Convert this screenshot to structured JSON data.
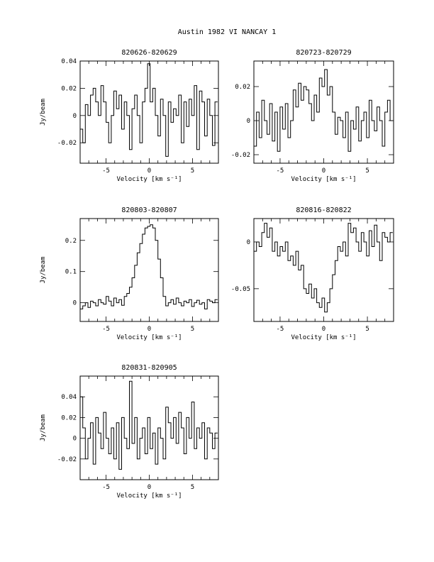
{
  "page": {
    "title": "Austin 1982 VI   NANCAY      1"
  },
  "chart_data": [
    {
      "type": "line",
      "title": "820626-820629",
      "xlabel": "Velocity [km s⁻¹]",
      "ylabel": "Jy/beam",
      "xlim": [
        -8,
        8
      ],
      "ylim": [
        -0.035,
        0.04
      ],
      "xticks": [
        -5,
        0,
        5
      ],
      "xtick_labels": [
        "-5",
        "0",
        "5"
      ],
      "yticks": [
        -0.02,
        0,
        0.02,
        0.04
      ],
      "ytick_labels": [
        "-0.02",
        "0",
        "0.02",
        "0.04"
      ],
      "x": [
        -8,
        -7.7,
        -7.4,
        -7.1,
        -6.8,
        -6.5,
        -6.2,
        -5.9,
        -5.6,
        -5.3,
        -5.0,
        -4.7,
        -4.4,
        -4.1,
        -3.8,
        -3.5,
        -3.2,
        -2.9,
        -2.6,
        -2.3,
        -2.0,
        -1.7,
        -1.4,
        -1.1,
        -0.8,
        -0.5,
        -0.2,
        0.1,
        0.4,
        0.7,
        1.0,
        1.3,
        1.6,
        1.9,
        2.2,
        2.5,
        2.8,
        3.1,
        3.4,
        3.7,
        4.0,
        4.3,
        4.6,
        4.9,
        5.2,
        5.5,
        5.8,
        6.1,
        6.4,
        6.7,
        7.0,
        7.3,
        7.6
      ],
      "y": [
        -0.01,
        -0.02,
        0.008,
        0.0,
        0.015,
        0.02,
        0.01,
        0.0,
        0.022,
        0.01,
        -0.005,
        -0.02,
        0.0,
        0.018,
        0.005,
        0.015,
        -0.01,
        0.01,
        0.0,
        -0.025,
        0.005,
        0.015,
        0.0,
        -0.02,
        0.01,
        0.02,
        0.038,
        0.01,
        0.02,
        0.0,
        -0.015,
        0.012,
        0.0,
        -0.03,
        0.01,
        -0.005,
        0.005,
        0.0,
        0.015,
        -0.02,
        0.01,
        -0.008,
        0.012,
        0.0,
        0.022,
        -0.025,
        0.018,
        0.01,
        -0.015,
        0.012,
        0.0,
        -0.022,
        0.01
      ]
    },
    {
      "type": "line",
      "title": "820723-820729",
      "xlabel": "Velocity [km s⁻¹]",
      "ylabel": "",
      "xlim": [
        -8,
        8
      ],
      "ylim": [
        -0.025,
        0.035
      ],
      "xticks": [
        -5,
        0,
        5
      ],
      "xtick_labels": [
        "-5",
        "0",
        "5"
      ],
      "yticks": [
        -0.02,
        0,
        0.02
      ],
      "ytick_labels": [
        "-0.02",
        "0",
        "0.02"
      ],
      "x": [
        -8,
        -7.7,
        -7.4,
        -7.1,
        -6.8,
        -6.5,
        -6.2,
        -5.9,
        -5.6,
        -5.3,
        -5.0,
        -4.7,
        -4.4,
        -4.1,
        -3.8,
        -3.5,
        -3.2,
        -2.9,
        -2.6,
        -2.3,
        -2.0,
        -1.7,
        -1.4,
        -1.1,
        -0.8,
        -0.5,
        -0.2,
        0.1,
        0.4,
        0.7,
        1.0,
        1.3,
        1.6,
        1.9,
        2.2,
        2.5,
        2.8,
        3.1,
        3.4,
        3.7,
        4.0,
        4.3,
        4.6,
        4.9,
        5.2,
        5.5,
        5.8,
        6.1,
        6.4,
        6.7,
        7.0,
        7.3,
        7.6
      ],
      "y": [
        -0.015,
        0.005,
        -0.01,
        0.012,
        0.0,
        -0.008,
        0.01,
        -0.012,
        0.005,
        -0.018,
        0.008,
        -0.005,
        0.01,
        -0.01,
        0.0,
        0.018,
        0.008,
        0.022,
        0.012,
        0.02,
        0.018,
        0.01,
        0.0,
        0.015,
        0.005,
        0.025,
        0.02,
        0.03,
        0.015,
        0.02,
        0.005,
        -0.008,
        0.002,
        0.0,
        -0.01,
        0.005,
        -0.018,
        0.0,
        -0.005,
        0.008,
        -0.012,
        0.0,
        0.005,
        -0.01,
        0.012,
        0.0,
        -0.006,
        0.008,
        0.0,
        -0.015,
        0.005,
        0.012,
        0.0
      ]
    },
    {
      "type": "line",
      "title": "820803-820807",
      "xlabel": "Velocity [km s⁻¹]",
      "ylabel": "Jy/beam",
      "xlim": [
        -8,
        8
      ],
      "ylim": [
        -0.06,
        0.27
      ],
      "xticks": [
        -5,
        0,
        5
      ],
      "xtick_labels": [
        "-5",
        "0",
        "5"
      ],
      "yticks": [
        0,
        0.1,
        0.2
      ],
      "ytick_labels": [
        "0",
        "0.1",
        "0.2"
      ],
      "x": [
        -8,
        -7.7,
        -7.4,
        -7.1,
        -6.8,
        -6.5,
        -6.2,
        -5.9,
        -5.6,
        -5.3,
        -5.0,
        -4.7,
        -4.4,
        -4.1,
        -3.8,
        -3.5,
        -3.2,
        -2.9,
        -2.6,
        -2.3,
        -2.0,
        -1.7,
        -1.4,
        -1.1,
        -0.8,
        -0.5,
        -0.2,
        0.1,
        0.4,
        0.7,
        1.0,
        1.3,
        1.6,
        1.9,
        2.2,
        2.5,
        2.8,
        3.1,
        3.4,
        3.7,
        4.0,
        4.3,
        4.6,
        4.9,
        5.2,
        5.5,
        5.8,
        6.1,
        6.4,
        6.7,
        7.0,
        7.3,
        7.6
      ],
      "y": [
        -0.02,
        -0.01,
        0.0,
        -0.015,
        0.005,
        0.0,
        -0.01,
        0.01,
        0.0,
        -0.005,
        0.02,
        0.005,
        -0.01,
        0.015,
        0.0,
        0.01,
        -0.008,
        0.02,
        0.03,
        0.05,
        0.08,
        0.12,
        0.16,
        0.19,
        0.22,
        0.24,
        0.245,
        0.25,
        0.24,
        0.2,
        0.14,
        0.08,
        0.02,
        -0.01,
        0.0,
        0.01,
        -0.005,
        0.015,
        0.0,
        -0.01,
        0.005,
        0.0,
        0.01,
        -0.012,
        0.0,
        0.008,
        -0.005,
        0.0,
        -0.02,
        0.01,
        0.005,
        0.0,
        0.01
      ]
    },
    {
      "type": "line",
      "title": "820816-820822",
      "xlabel": "Velocity [km s⁻¹]",
      "ylabel": "",
      "xlim": [
        -8,
        8
      ],
      "ylim": [
        -0.085,
        0.025
      ],
      "xticks": [
        -5,
        0,
        5
      ],
      "xtick_labels": [
        "-5",
        "0",
        "5"
      ],
      "yticks": [
        -0.05,
        0
      ],
      "ytick_labels": [
        "-0.05",
        "0"
      ],
      "x": [
        -8,
        -7.7,
        -7.4,
        -7.1,
        -6.8,
        -6.5,
        -6.2,
        -5.9,
        -5.6,
        -5.3,
        -5.0,
        -4.7,
        -4.4,
        -4.1,
        -3.8,
        -3.5,
        -3.2,
        -2.9,
        -2.6,
        -2.3,
        -2.0,
        -1.7,
        -1.4,
        -1.1,
        -0.8,
        -0.5,
        -0.2,
        0.1,
        0.4,
        0.7,
        1.0,
        1.3,
        1.6,
        1.9,
        2.2,
        2.5,
        2.8,
        3.1,
        3.4,
        3.7,
        4.0,
        4.3,
        4.6,
        4.9,
        5.2,
        5.5,
        5.8,
        6.1,
        6.4,
        6.7,
        7.0,
        7.3,
        7.6
      ],
      "y": [
        -0.01,
        0.0,
        -0.005,
        0.01,
        0.02,
        0.005,
        0.015,
        -0.01,
        0.0,
        -0.015,
        -0.005,
        -0.01,
        0.0,
        -0.02,
        -0.015,
        -0.025,
        -0.01,
        -0.03,
        -0.025,
        -0.05,
        -0.055,
        -0.045,
        -0.06,
        -0.05,
        -0.065,
        -0.07,
        -0.06,
        -0.075,
        -0.065,
        -0.05,
        -0.035,
        -0.02,
        -0.005,
        -0.01,
        0.0,
        -0.015,
        0.02,
        0.01,
        0.015,
        0.0,
        -0.01,
        0.01,
        0.0,
        -0.015,
        0.012,
        -0.005,
        0.018,
        0.0,
        -0.02,
        0.01,
        0.005,
        0.0,
        0.01
      ]
    },
    {
      "type": "line",
      "title": "820831-820905",
      "xlabel": "Velocity [km s⁻¹]",
      "ylabel": "Jy/beam",
      "xlim": [
        -8,
        8
      ],
      "ylim": [
        -0.04,
        0.06
      ],
      "xticks": [
        -5,
        0,
        5
      ],
      "xtick_labels": [
        "-5",
        "0",
        "5"
      ],
      "yticks": [
        -0.02,
        0,
        0.02,
        0.04
      ],
      "ytick_labels": [
        "-0.02",
        "0",
        "0.02",
        "0.04"
      ],
      "x": [
        -8,
        -7.7,
        -7.4,
        -7.1,
        -6.8,
        -6.5,
        -6.2,
        -5.9,
        -5.6,
        -5.3,
        -5.0,
        -4.7,
        -4.4,
        -4.1,
        -3.8,
        -3.5,
        -3.2,
        -2.9,
        -2.6,
        -2.3,
        -2.0,
        -1.7,
        -1.4,
        -1.1,
        -0.8,
        -0.5,
        -0.2,
        0.1,
        0.4,
        0.7,
        1.0,
        1.3,
        1.6,
        1.9,
        2.2,
        2.5,
        2.8,
        3.1,
        3.4,
        3.7,
        4.0,
        4.3,
        4.6,
        4.9,
        5.2,
        5.5,
        5.8,
        6.1,
        6.4,
        6.7,
        7.0,
        7.3,
        7.6
      ],
      "y": [
        0.04,
        0.01,
        -0.02,
        0.0,
        0.015,
        -0.025,
        0.02,
        0.005,
        -0.01,
        0.025,
        0.0,
        -0.015,
        0.01,
        -0.02,
        0.015,
        -0.03,
        0.02,
        0.0,
        -0.01,
        0.055,
        -0.005,
        0.02,
        -0.02,
        0.0,
        0.01,
        -0.015,
        0.02,
        -0.01,
        0.005,
        -0.025,
        0.01,
        0.0,
        -0.02,
        0.03,
        0.015,
        0.0,
        0.02,
        -0.005,
        0.025,
        0.01,
        -0.015,
        0.02,
        0.0,
        0.035,
        -0.01,
        0.01,
        0.0,
        0.015,
        -0.02,
        0.01,
        0.005,
        -0.01,
        0.005
      ]
    }
  ]
}
